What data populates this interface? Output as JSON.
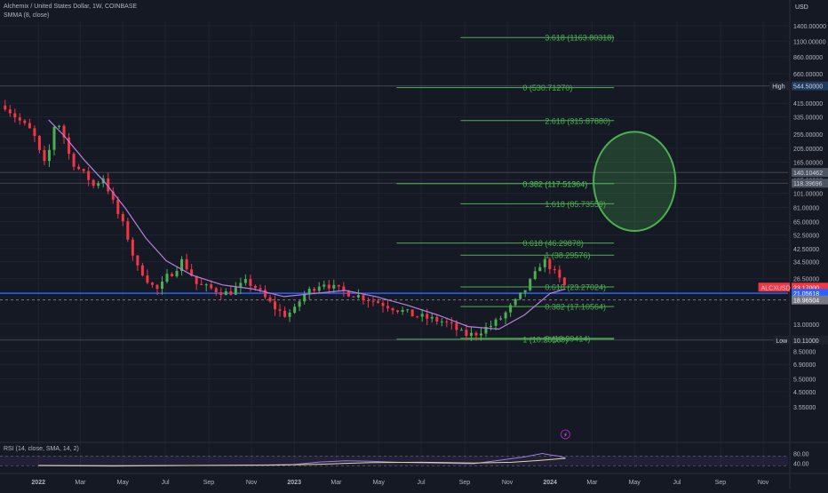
{
  "header": {
    "title": "Alchemix / United States Dollar, 1W, COINBASE",
    "indicator": "SMMA (8, close)",
    "rsi_legend": "RSI (14, close, SMA, 14, 2)",
    "price_unit": "USD"
  },
  "chart_data": {
    "type": "candlestick",
    "symbol": "ALCXUSD",
    "scale": "log",
    "ylim": [
      3.0,
      1500
    ],
    "y_ticks": [
      "1400.00000",
      "1100.00000",
      "860.00000",
      "660.00000",
      "415.00000",
      "335.00000",
      "255.00000",
      "205.00000",
      "165.00000",
      "125.00000",
      "101.00000",
      "81.00000",
      "65.00000",
      "52.50000",
      "42.50000",
      "34.50000",
      "26.50000",
      "13.00000",
      "10.50000",
      "8.50000",
      "6.90000",
      "5.50000",
      "4.50000",
      "3.55000"
    ],
    "x_ticks": [
      "2022",
      "Mar",
      "May",
      "Jul",
      "Sep",
      "Nov",
      "2023",
      "Mar",
      "May",
      "Jul",
      "Sep",
      "Nov",
      "2024",
      "Mar",
      "May",
      "Jul",
      "Sep",
      "Nov"
    ],
    "x_tick_times": [
      2022.0,
      2022.164,
      2022.33,
      2022.496,
      2022.666,
      2022.833,
      2023.0,
      2023.164,
      2023.33,
      2023.496,
      2023.666,
      2023.833,
      2024.0,
      2024.164,
      2024.33,
      2024.496,
      2024.666,
      2024.833
    ],
    "x_range": [
      2021.85,
      2024.93
    ],
    "price_labels": [
      {
        "name": "High",
        "value": "544.50000",
        "price": 544.5,
        "color": "#1e3a5f",
        "text_color": "#d1d4dc"
      },
      {
        "name": "",
        "value": "140.10462",
        "price": 140.1,
        "color": "#4e5563",
        "text_color": "#d1d4dc"
      },
      {
        "name": "",
        "value": "118.39696",
        "price": 118.4,
        "color": "#4e5563",
        "text_color": "#d1d4dc"
      },
      {
        "name": "ALCXUSD",
        "value": "23.17000",
        "price": 23.17,
        "color": "#f23645",
        "text_color": "#ffffff"
      },
      {
        "name": "",
        "value": "21.05618",
        "price": 21.06,
        "color": "#2962ff",
        "text_color": "#ffffff"
      },
      {
        "name": "",
        "value": "18.96504",
        "price": 18.97,
        "color": "#787b86",
        "text_color": "#ffffff"
      },
      {
        "name": "Low",
        "value": "10.11000",
        "price": 10.11,
        "color": "#1e222d",
        "text_color": "#d1d4dc"
      }
    ],
    "horizontal_lines": [
      {
        "price": 544.5,
        "color": "#434651",
        "style": "solid"
      },
      {
        "price": 140.1,
        "color": "#434651",
        "style": "solid"
      },
      {
        "price": 118.4,
        "color": "#434651",
        "style": "solid"
      },
      {
        "price": 21.06,
        "color": "#2962ff",
        "style": "solid"
      },
      {
        "price": 18.97,
        "color": "#787b86",
        "style": "dashed"
      },
      {
        "price": 10.11,
        "color": "#434651",
        "style": "solid"
      }
    ],
    "fib_levels": [
      {
        "label": "3.618 (1163.80318)",
        "price": 1163.8,
        "t0": 2023.65,
        "t1": 2024.25
      },
      {
        "label": "0 (530.71270)",
        "price": 530.7,
        "t0": 2023.4,
        "t1": 2024.25
      },
      {
        "label": "2.618 (315.87880)",
        "price": 315.9,
        "t0": 2023.65,
        "t1": 2024.25
      },
      {
        "label": "0.382 (117.51364)",
        "price": 117.5,
        "t0": 2023.4,
        "t1": 2024.25
      },
      {
        "label": "1.618 (85.73559)",
        "price": 85.7,
        "t0": 2023.65,
        "t1": 2024.25
      },
      {
        "label": "0.618 (46.29878)",
        "price": 46.3,
        "t0": 2023.4,
        "t1": 2024.25
      },
      {
        "label": "1 (38.29576)",
        "price": 38.3,
        "t0": 2023.65,
        "t1": 2024.25
      },
      {
        "label": "0.618 (23.27024)",
        "price": 23.27,
        "t0": 2023.65,
        "t1": 2024.25
      },
      {
        "label": "0.382 (17.10564)",
        "price": 17.1,
        "t0": 2023.65,
        "t1": 2024.25
      },
      {
        "label": "0 (10.39414)",
        "price": 10.39,
        "t0": 2023.65,
        "t1": 2024.25
      },
      {
        "label": "1 (10.25169)",
        "price": 10.25,
        "t0": 2023.4,
        "t1": 2024.25
      }
    ],
    "ellipse": {
      "t_center": 2024.33,
      "price_center": 117.5,
      "t_half_width": 0.16,
      "price_top": 265,
      "price_bottom": 56,
      "color": "#4caf50"
    },
    "candle_anchors": [
      [
        2021.87,
        400
      ],
      [
        2021.9,
        350
      ],
      [
        2021.94,
        300
      ],
      [
        2021.98,
        260
      ],
      [
        2022.0,
        200
      ],
      [
        2022.03,
        150
      ],
      [
        2022.06,
        290
      ],
      [
        2022.09,
        300
      ],
      [
        2022.11,
        200
      ],
      [
        2022.14,
        160
      ],
      [
        2022.17,
        140
      ],
      [
        2022.2,
        125
      ],
      [
        2022.22,
        110
      ],
      [
        2022.25,
        135
      ],
      [
        2022.28,
        100
      ],
      [
        2022.3,
        80
      ],
      [
        2022.33,
        62
      ],
      [
        2022.36,
        45
      ],
      [
        2022.38,
        32
      ],
      [
        2022.41,
        29
      ],
      [
        2022.44,
        24
      ],
      [
        2022.47,
        22
      ],
      [
        2022.5,
        27
      ],
      [
        2022.53,
        30
      ],
      [
        2022.56,
        35
      ],
      [
        2022.59,
        30
      ],
      [
        2022.62,
        24
      ],
      [
        2022.66,
        23
      ],
      [
        2022.7,
        22
      ],
      [
        2022.74,
        21
      ],
      [
        2022.78,
        23
      ],
      [
        2022.81,
        25
      ],
      [
        2022.84,
        24
      ],
      [
        2022.88,
        20
      ],
      [
        2022.92,
        17
      ],
      [
        2022.96,
        15
      ],
      [
        2023.0,
        16
      ],
      [
        2023.03,
        20
      ],
      [
        2023.06,
        22
      ],
      [
        2023.09,
        24
      ],
      [
        2023.12,
        25
      ],
      [
        2023.15,
        23
      ],
      [
        2023.18,
        22
      ],
      [
        2023.22,
        21
      ],
      [
        2023.26,
        20
      ],
      [
        2023.3,
        19
      ],
      [
        2023.34,
        18
      ],
      [
        2023.38,
        17
      ],
      [
        2023.42,
        16
      ],
      [
        2023.46,
        15
      ],
      [
        2023.5,
        14.5
      ],
      [
        2023.54,
        14
      ],
      [
        2023.58,
        13.5
      ],
      [
        2023.62,
        12.5
      ],
      [
        2023.66,
        11
      ],
      [
        2023.7,
        11
      ],
      [
        2023.74,
        12
      ],
      [
        2023.78,
        13
      ],
      [
        2023.82,
        15
      ],
      [
        2023.86,
        18
      ],
      [
        2023.9,
        22
      ],
      [
        2023.94,
        28
      ],
      [
        2023.97,
        36
      ],
      [
        2024.0,
        32
      ],
      [
        2024.03,
        27
      ],
      [
        2024.06,
        23.17
      ]
    ],
    "smma_anchors": [
      [
        2022.04,
        320
      ],
      [
        2022.1,
        250
      ],
      [
        2022.18,
        170
      ],
      [
        2022.26,
        120
      ],
      [
        2022.34,
        80
      ],
      [
        2022.42,
        50
      ],
      [
        2022.5,
        35
      ],
      [
        2022.6,
        28
      ],
      [
        2022.72,
        24
      ],
      [
        2022.84,
        22.5
      ],
      [
        2022.96,
        20
      ],
      [
        2023.08,
        21
      ],
      [
        2023.2,
        22
      ],
      [
        2023.32,
        20
      ],
      [
        2023.44,
        17.5
      ],
      [
        2023.56,
        15
      ],
      [
        2023.68,
        12.5
      ],
      [
        2023.8,
        12
      ],
      [
        2023.9,
        15
      ],
      [
        2024.0,
        21
      ],
      [
        2024.06,
        22.5
      ]
    ],
    "rsi": {
      "ylim": [
        20,
        100
      ],
      "ticks": [
        "80.00",
        "40.00"
      ],
      "band": [
        30,
        70
      ],
      "rsi_anchors": [
        [
          2022.0,
          30
        ],
        [
          2022.3,
          28
        ],
        [
          2022.6,
          31
        ],
        [
          2022.9,
          33
        ],
        [
          2023.0,
          35
        ],
        [
          2023.1,
          45
        ],
        [
          2023.2,
          50
        ],
        [
          2023.3,
          48
        ],
        [
          2023.4,
          44
        ],
        [
          2023.5,
          42
        ],
        [
          2023.6,
          40
        ],
        [
          2023.7,
          38
        ],
        [
          2023.8,
          52
        ],
        [
          2023.9,
          66
        ],
        [
          2023.97,
          80
        ],
        [
          2024.0,
          74
        ],
        [
          2024.03,
          70
        ],
        [
          2024.06,
          62
        ]
      ],
      "sma_anchors": [
        [
          2022.0,
          31
        ],
        [
          2022.3,
          30
        ],
        [
          2022.6,
          31
        ],
        [
          2022.9,
          32
        ],
        [
          2023.1,
          36
        ],
        [
          2023.3,
          43
        ],
        [
          2023.5,
          44
        ],
        [
          2023.7,
          41
        ],
        [
          2023.85,
          44
        ],
        [
          2023.95,
          51
        ],
        [
          2024.06,
          60
        ]
      ]
    }
  }
}
